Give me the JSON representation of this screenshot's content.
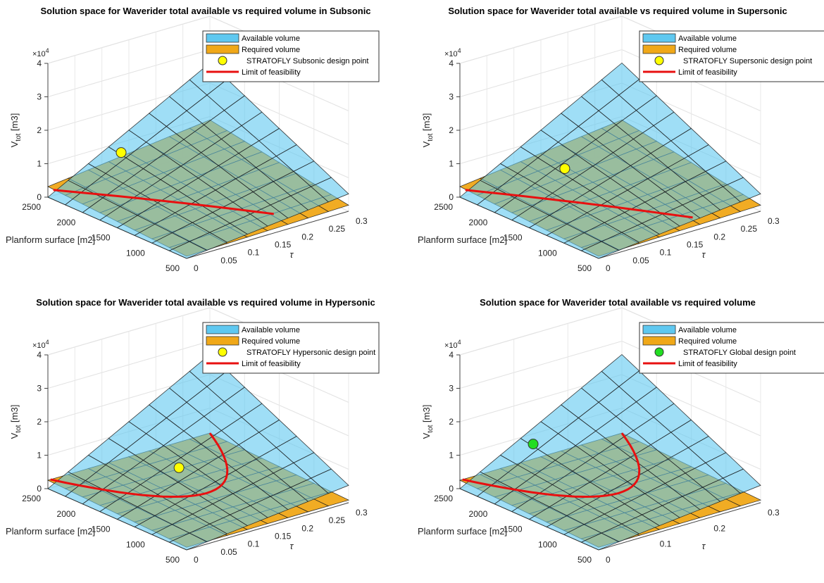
{
  "chart_data": [
    {
      "type": "surface3d",
      "title": "Solution space for Waverider total available vs required volume in Subsonic",
      "xlabel": "Planform surface [m2]",
      "ylabel": "τ",
      "zlabel": "V_tot [m3]",
      "zlabel_main": "V",
      "zlabel_sub": "tot",
      "zlabel_unit": "[m3]",
      "z_exponent_base": "×10",
      "z_exponent_power": "4",
      "x_ticks": [
        "2500",
        "2000",
        "1500",
        "1000",
        "500"
      ],
      "y_ticks": [
        "0",
        "0.05",
        "0.1",
        "0.15",
        "0.2",
        "0.25",
        "0.3"
      ],
      "z_ticks": [
        "0",
        "1",
        "2",
        "3",
        "4"
      ],
      "xlim": [
        500,
        2500
      ],
      "ylim": [
        0,
        0.3
      ],
      "zlim": [
        0,
        40000
      ],
      "legend": {
        "position": "top-right",
        "entries": [
          "Available volume",
          "Required volume",
          "STRATOFLY Subsonic design point",
          "Limit of feasibility"
        ]
      },
      "series": [
        {
          "kind": "surface",
          "color": "#5fc8f0",
          "model": "V = 2.6e4 * (S/2500) * (tau/0.3)"
        },
        {
          "kind": "surface",
          "color": "#f0a818",
          "model": "V = 9000 * (S/2500) * (0.35 + 0.65 * tau/0.3)"
        },
        {
          "kind": "point",
          "color": "#ffff00",
          "x": 2300,
          "y": 0.11,
          "z": 10000
        },
        {
          "kind": "line",
          "color": "#e81010",
          "from": [
            2500,
            0.01
          ],
          "to": [
            800,
            0.2
          ]
        }
      ]
    },
    {
      "type": "surface3d",
      "title": "Solution space for Waverider total available vs required volume in Supersonic",
      "xlabel": "Planform surface [m2]",
      "ylabel": "τ",
      "zlabel": "V_tot [m3]",
      "zlabel_main": "V",
      "zlabel_sub": "tot",
      "zlabel_unit": "[m3]",
      "z_exponent_base": "×10",
      "z_exponent_power": "4",
      "x_ticks": [
        "2500",
        "2000",
        "1500",
        "1000",
        "500"
      ],
      "y_ticks": [
        "0",
        "0.05",
        "0.1",
        "0.15",
        "0.2",
        "0.25",
        "0.3"
      ],
      "z_ticks": [
        "0",
        "1",
        "2",
        "3",
        "4"
      ],
      "xlim": [
        500,
        2500
      ],
      "ylim": [
        0,
        0.3
      ],
      "zlim": [
        0,
        40000
      ],
      "legend": {
        "position": "top-right",
        "entries": [
          "Available volume",
          "Required volume",
          "STRATOFLY Supersonic design point",
          "Limit of feasibility"
        ]
      },
      "series": [
        {
          "kind": "surface",
          "color": "#5fc8f0",
          "model": "V = 2.6e4 * (S/2500) * (tau/0.3)"
        },
        {
          "kind": "surface",
          "color": "#f0a818",
          "model": "V = 9000 * (S/2500) * (0.35 + 0.65 * tau/0.3)"
        },
        {
          "kind": "point",
          "color": "#ffff00",
          "x": 2000,
          "y": 0.13,
          "z": 7000
        },
        {
          "kind": "line",
          "color": "#e81010",
          "from": [
            2500,
            0.01
          ],
          "to": [
            700,
            0.2
          ]
        }
      ]
    },
    {
      "type": "surface3d",
      "title": "Solution space for Waverider total available vs required volume in Hypersonic",
      "xlabel": "Planform surface [m2]",
      "ylabel": "τ",
      "zlabel": "V_tot [m3]",
      "zlabel_main": "V",
      "zlabel_sub": "tot",
      "zlabel_unit": "[m3]",
      "z_exponent_base": "×10",
      "z_exponent_power": "4",
      "x_ticks": [
        "2500",
        "2000",
        "1500",
        "1000",
        "500"
      ],
      "y_ticks": [
        "0",
        "0.05",
        "0.1",
        "0.15",
        "0.2",
        "0.25",
        "0.3"
      ],
      "z_ticks": [
        "0",
        "1",
        "2",
        "3",
        "4"
      ],
      "xlim": [
        500,
        2500
      ],
      "ylim": [
        0,
        0.3
      ],
      "zlim": [
        0,
        40000
      ],
      "legend": {
        "position": "top-right",
        "entries": [
          "Available volume",
          "Required volume",
          "STRATOFLY Hypersonic design point",
          "Limit of feasibility"
        ]
      },
      "series": [
        {
          "kind": "surface",
          "color": "#5fc8f0",
          "model": "V = 2.6e4 * (S/2500) * (tau/0.3)"
        },
        {
          "kind": "surface",
          "color": "#f0a818",
          "model": "V = 2500 * (0.15 + 0.85 * S/2500)"
        },
        {
          "kind": "point",
          "color": "#ffff00",
          "x": 1700,
          "y": 0.14,
          "z": 7000
        },
        {
          "kind": "line",
          "color": "#e81010",
          "from": [
            2500,
            0.005
          ],
          "to": [
            2500,
            0.3
          ],
          "sag_x": 1400
        }
      ]
    },
    {
      "type": "surface3d",
      "title": "Solution space for Waverider total available vs required volume",
      "xlabel": "Planform surface [m2]",
      "ylabel": "τ",
      "zlabel": "V_tot [m3]",
      "zlabel_main": "V",
      "zlabel_sub": "tot",
      "zlabel_unit": "[m3]",
      "z_exponent_base": "×10",
      "z_exponent_power": "4",
      "x_ticks": [
        "2500",
        "2000",
        "1500",
        "1000",
        "500"
      ],
      "y_ticks": [
        "0",
        "0.1",
        "0.2",
        "0.3"
      ],
      "z_ticks": [
        "0",
        "1",
        "2",
        "3",
        "4"
      ],
      "xlim": [
        500,
        2500
      ],
      "ylim": [
        0,
        0.3
      ],
      "zlim": [
        0,
        40000
      ],
      "legend": {
        "position": "top-right",
        "entries": [
          "Available volume",
          "Required volume",
          "STRATOFLY Global design point",
          "Limit of feasibility"
        ]
      },
      "series": [
        {
          "kind": "surface",
          "color": "#5fc8f0",
          "model": "V = 2.6e4 * (S/2500) * (tau/0.3)"
        },
        {
          "kind": "surface",
          "color": "#f0a818",
          "model": "V = 2500 * (0.15 + 0.85 * S/2500)"
        },
        {
          "kind": "point",
          "color": "#22dd22",
          "x": 2300,
          "y": 0.11,
          "z": 10000
        },
        {
          "kind": "line",
          "color": "#e81010",
          "from": [
            2500,
            0.005
          ],
          "to": [
            2500,
            0.3
          ],
          "sag_x": 1400
        }
      ]
    }
  ]
}
